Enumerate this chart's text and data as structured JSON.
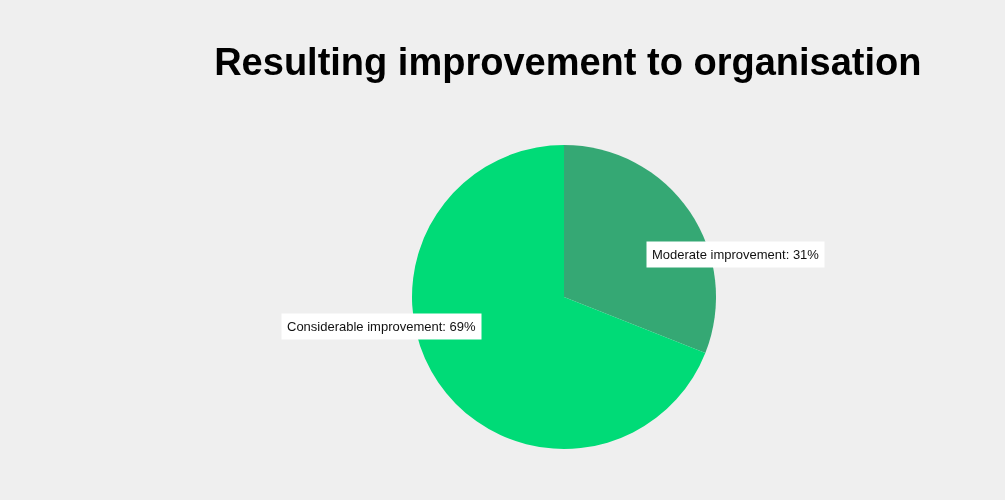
{
  "chart_data": {
    "type": "pie",
    "title": "Resulting improvement to organisation",
    "categories": [
      "Moderate improvement",
      "Considerable improvement"
    ],
    "values": [
      31,
      69
    ],
    "value_labels": [
      "31%",
      "69%"
    ],
    "colors": [
      "#35a874",
      "#00db77"
    ],
    "legend": false
  }
}
